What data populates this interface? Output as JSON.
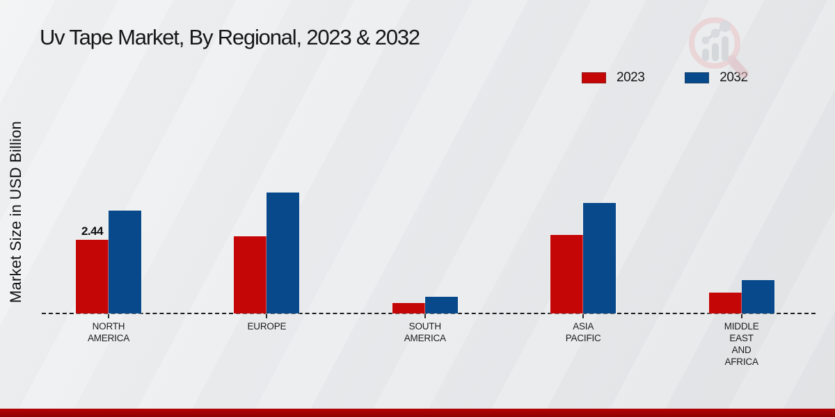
{
  "header": {
    "title": "Uv Tape Market, By Regional, 2023 & 2032"
  },
  "y_axis": {
    "label": "Market Size in USD Billion"
  },
  "legend": {
    "items": [
      {
        "label": "2023",
        "color": "#c40606"
      },
      {
        "label": "2032",
        "color": "#07498a"
      }
    ]
  },
  "chart_data": {
    "type": "bar",
    "title": "Uv Tape Market, By Regional, 2023 & 2032",
    "xlabel": "",
    "ylabel": "Market Size in USD Billion",
    "ylim": [
      0,
      5
    ],
    "grid": false,
    "baseline_style": "dashed",
    "legend_position": "top-right",
    "categories": [
      "NORTH\nAMERICA",
      "EUROPE",
      "SOUTH\nAMERICA",
      "ASIA\nPACIFIC",
      "MIDDLE\nEAST\nAND\nAFRICA"
    ],
    "series": [
      {
        "name": "2023",
        "color": "#c40606",
        "values": [
          2.44,
          2.55,
          0.35,
          2.6,
          0.7
        ]
      },
      {
        "name": "2032",
        "color": "#07498a",
        "values": [
          3.4,
          4.0,
          0.55,
          3.65,
          1.1
        ]
      }
    ],
    "annotations": [
      {
        "series_index": 0,
        "category_index": 0,
        "text": "2.44"
      }
    ]
  },
  "watermark": {
    "name": "magnifier-bar-chart-logo",
    "circle_color": "#eac3c6",
    "bars_color": "#c5c8cd"
  },
  "footer": {
    "bar_color": "#b40404"
  }
}
